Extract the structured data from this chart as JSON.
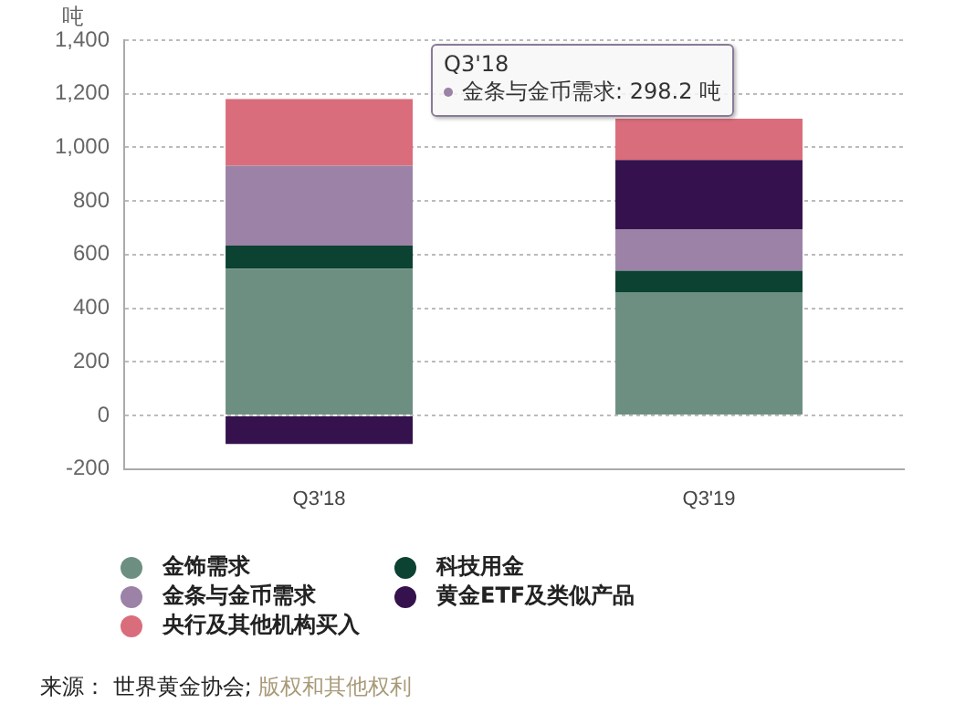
{
  "chart_data": {
    "type": "bar",
    "stacked": true,
    "ylabel": "吨",
    "categories": [
      "Q3'18",
      "Q3'19"
    ],
    "series": [
      {
        "name": "金饰需求",
        "color": "#6d8f82",
        "values": [
          547,
          460
        ]
      },
      {
        "name": "科技用金",
        "color": "#0b4232",
        "values": [
          86,
          80
        ]
      },
      {
        "name": "金条与金币需求",
        "color": "#9b82a6",
        "values": [
          298.2,
          153
        ]
      },
      {
        "name": "黄金ETF及类似产品",
        "color": "#35124d",
        "values": [
          -107,
          260
        ]
      },
      {
        "name": "央行及其他机构买入",
        "color": "#da6d7b",
        "values": [
          249,
          154
        ]
      }
    ],
    "ylim": [
      -200,
      1400
    ],
    "yticks": [
      {
        "value": -200,
        "label": "-200"
      },
      0,
      200,
      400,
      600,
      800,
      {
        "value": 1000,
        "label": "1,000"
      },
      {
        "value": 1200,
        "label": "1,200"
      },
      {
        "value": 1400,
        "label": "1,400"
      }
    ],
    "grid": "y",
    "legend": "bottom",
    "annotations": [
      "Q3'18",
      "金条与金币需求: 298.2 吨",
      "来源：  世界黄金协会;",
      "版权和其他权利"
    ]
  }
}
